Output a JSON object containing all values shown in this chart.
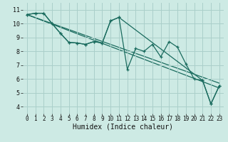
{
  "background_color": "#cdeae4",
  "grid_color": "#aacfca",
  "line_color": "#1a6b5e",
  "marker_color": "#1a6b5e",
  "xlabel": "Humidex (Indice chaleur)",
  "xlim": [
    -0.5,
    23.5
  ],
  "ylim": [
    3.5,
    11.5
  ],
  "xticks": [
    0,
    1,
    2,
    3,
    4,
    5,
    6,
    7,
    8,
    9,
    10,
    11,
    12,
    13,
    14,
    15,
    16,
    17,
    18,
    19,
    20,
    21,
    22,
    23
  ],
  "yticks": [
    4,
    5,
    6,
    7,
    8,
    9,
    10,
    11
  ],
  "series": [
    {
      "x": [
        0,
        1,
        2,
        3,
        4,
        5,
        6,
        7,
        8,
        9,
        10,
        11,
        21,
        22,
        23
      ],
      "y": [
        10.65,
        10.75,
        10.75,
        10.0,
        9.3,
        8.65,
        8.6,
        8.5,
        8.7,
        8.6,
        10.2,
        10.45,
        5.9,
        4.2,
        5.5
      ],
      "has_markers": true
    },
    {
      "x": [
        0,
        1,
        2,
        3,
        4,
        5,
        6,
        7,
        8,
        9,
        10,
        11,
        12,
        13,
        14,
        15,
        16,
        17,
        18,
        19,
        20,
        21,
        22,
        23
      ],
      "y": [
        10.65,
        10.75,
        10.75,
        10.0,
        9.3,
        8.65,
        8.6,
        8.5,
        8.7,
        8.6,
        10.2,
        10.45,
        6.7,
        8.2,
        8.0,
        8.5,
        7.6,
        8.7,
        8.3,
        7.1,
        6.0,
        5.9,
        4.2,
        5.5
      ],
      "has_markers": true
    },
    {
      "x": [
        0,
        23
      ],
      "y": [
        10.65,
        5.35
      ],
      "has_markers": false
    },
    {
      "x": [
        0,
        23
      ],
      "y": [
        10.65,
        5.7
      ],
      "has_markers": false
    }
  ],
  "xlabel_fontsize": 7,
  "tick_fontsize": 5.5,
  "linewidth": 0.9,
  "markersize": 3.5
}
